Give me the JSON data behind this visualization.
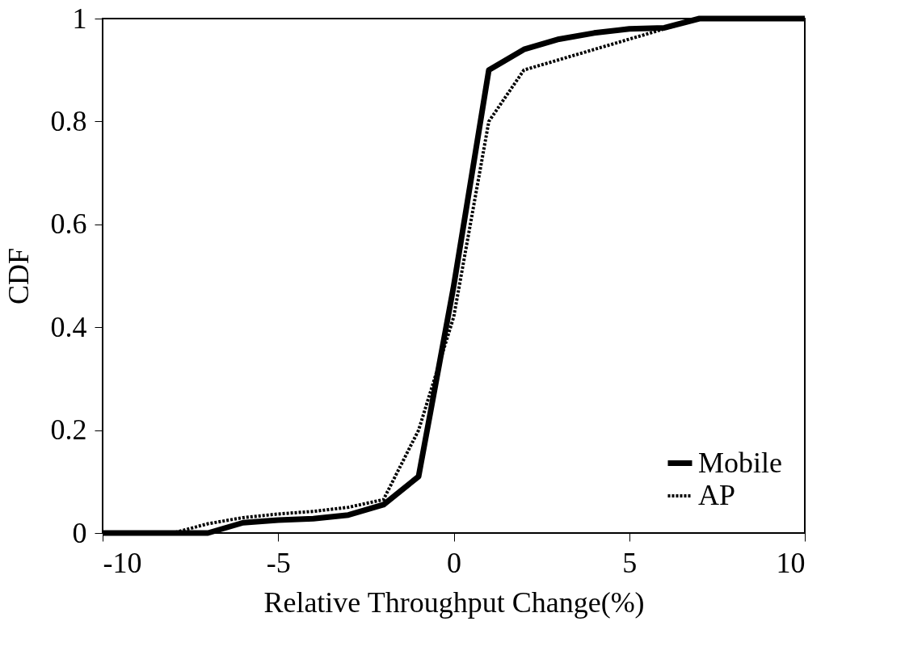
{
  "chart_data": {
    "type": "line",
    "xlabel": "Relative Throughput Change(%)",
    "ylabel": "CDF",
    "x": [
      -10,
      -9,
      -8,
      -7,
      -6,
      -5,
      -4,
      -3,
      -2,
      -1,
      0,
      1,
      2,
      3,
      4,
      5,
      6,
      7,
      8,
      9,
      10
    ],
    "series": [
      {
        "name": "Mobile",
        "color": "#000000",
        "line_style": "solid",
        "values": [
          0,
          0,
          0,
          0,
          0.02,
          0.025,
          0.028,
          0.035,
          0.055,
          0.11,
          0.48,
          0.9,
          0.94,
          0.96,
          0.972,
          0.98,
          0.982,
          1,
          1,
          1,
          1
        ]
      },
      {
        "name": "AP",
        "color": "#000000",
        "line_style": "dotted",
        "values": [
          0,
          0,
          0,
          0.018,
          0.03,
          0.037,
          0.042,
          0.05,
          0.065,
          0.2,
          0.42,
          0.8,
          0.9,
          0.92,
          0.94,
          0.96,
          0.98,
          1,
          1,
          1,
          1
        ]
      }
    ],
    "xlim": [
      -10,
      10
    ],
    "xticks": [
      -10,
      -5,
      0,
      5,
      10
    ],
    "ylim": [
      0,
      1
    ],
    "yticks": [
      0,
      0.2,
      0.4,
      0.6,
      0.8,
      1
    ],
    "grid": false,
    "legend": "bottom right",
    "marker": "none"
  }
}
